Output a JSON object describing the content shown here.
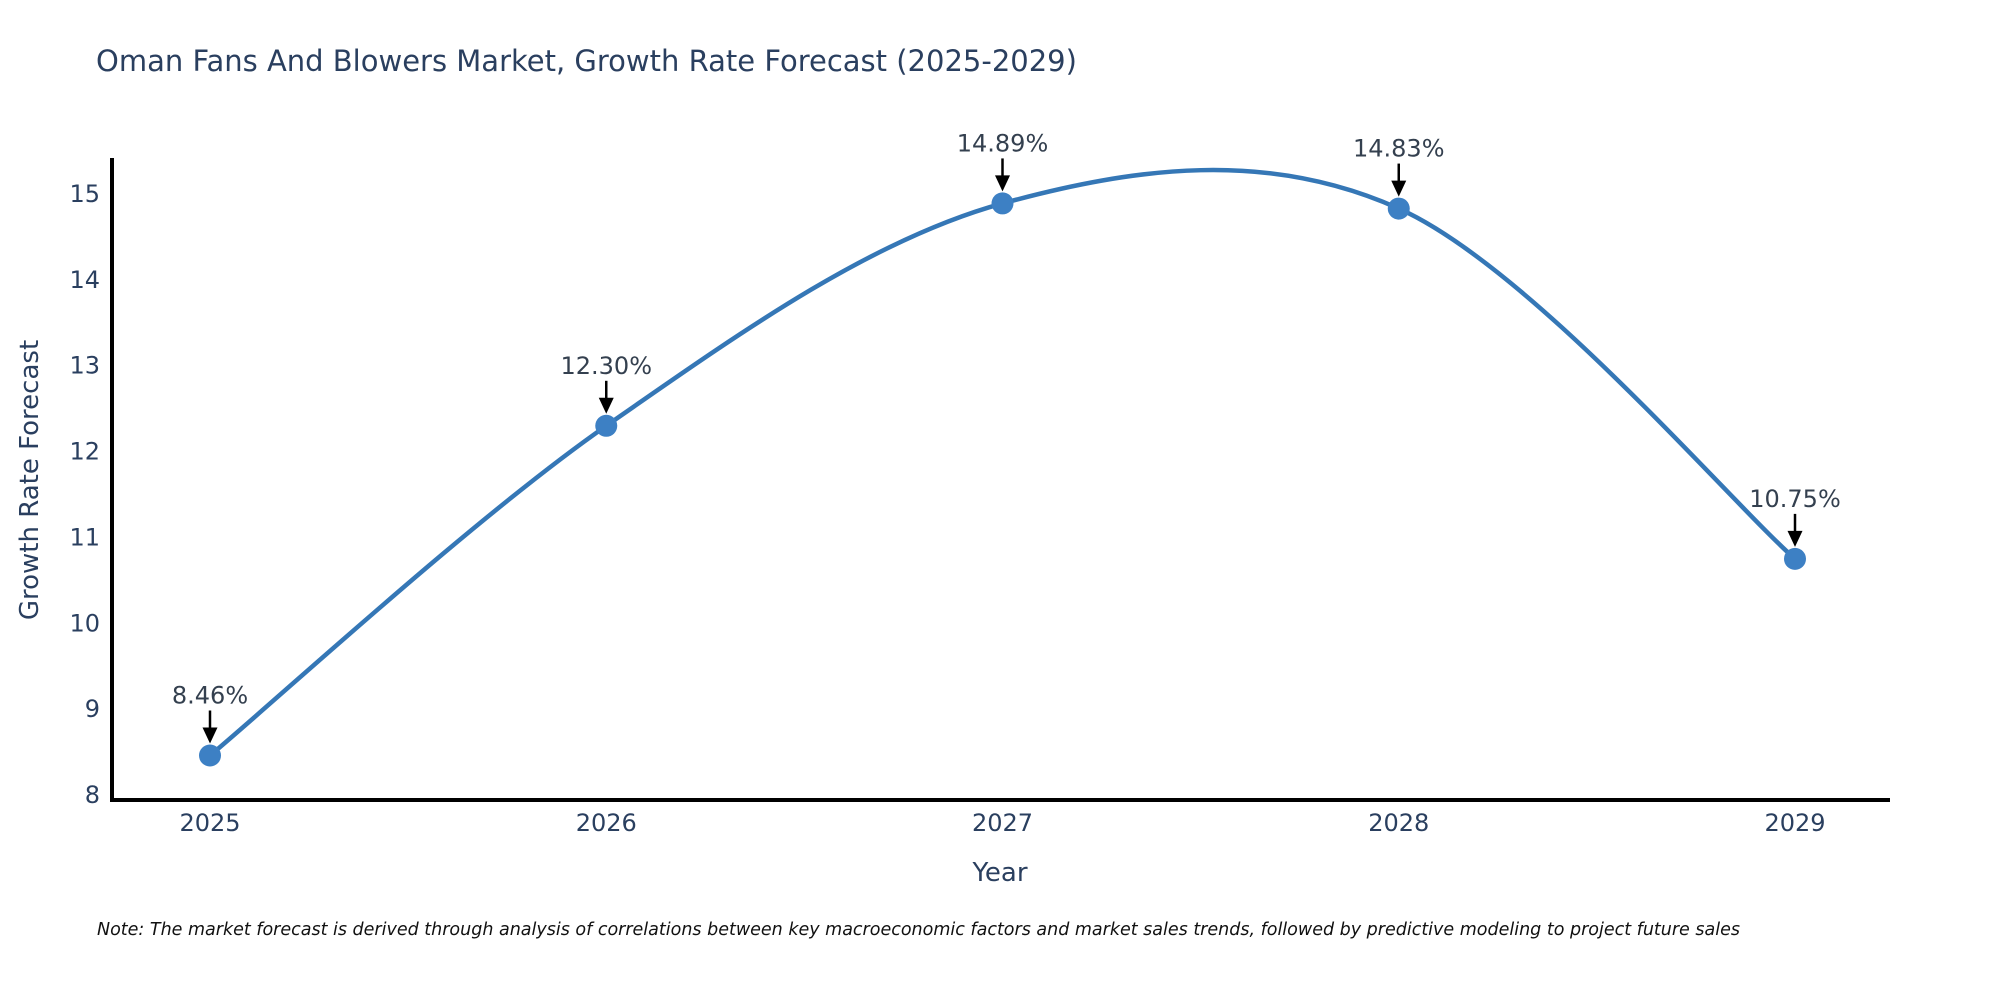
{
  "title": "Oman Fans And Blowers Market, Growth Rate Forecast (2025-2029)",
  "note": "Note: The market forecast is derived through analysis of correlations between key macroeconomic factors and market sales trends, followed by predictive modeling to project future sales",
  "chart_data": {
    "type": "line",
    "line_shape": "spline",
    "markers": true,
    "grid": false,
    "legend": "none",
    "title": "Oman Fans And Blowers Market, Growth Rate Forecast (2025-2029)",
    "xlabel": "Year",
    "ylabel": "Growth Rate Forecast",
    "x": [
      2025,
      2026,
      2027,
      2028,
      2029
    ],
    "values": [
      8.46,
      12.3,
      14.89,
      14.83,
      10.75
    ],
    "labels": [
      "8.46%",
      "12.30%",
      "14.89%",
      "14.83%",
      "10.75%"
    ],
    "yticks": [
      8,
      9,
      10,
      11,
      12,
      13,
      14,
      15
    ],
    "ylim": [
      7.95,
      15.4
    ],
    "colors": {
      "line": "#3577b6",
      "marker": "#3d80c4",
      "axis": "#000000",
      "text": "#2a3f5f",
      "annotation_arrow": "#000000"
    }
  }
}
